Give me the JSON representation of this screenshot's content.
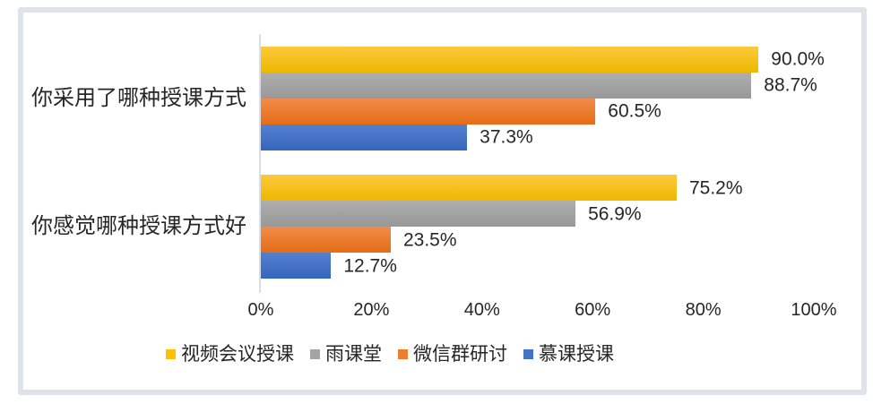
{
  "chart_data": {
    "type": "bar",
    "orientation": "horizontal",
    "title": "",
    "categories": [
      "你采用了哪种授课方式",
      "你感觉哪种授课方式好"
    ],
    "series": [
      {
        "name": "视频会议授课",
        "color": "#FFC000",
        "gradient": [
          "#FDC93B",
          "#EEB800"
        ],
        "values": [
          90.0,
          75.2
        ]
      },
      {
        "name": "雨课堂",
        "color": "#A5A5A5",
        "gradient": [
          "#AEAEAE",
          "#989898"
        ],
        "values": [
          88.7,
          56.9
        ]
      },
      {
        "name": "微信群研讨",
        "color": "#ED7D31",
        "gradient": [
          "#F18C4B",
          "#E56D15"
        ],
        "values": [
          60.5,
          23.5
        ]
      },
      {
        "name": "慕课授课",
        "color": "#4472C4",
        "gradient": [
          "#5480CE",
          "#3565BE"
        ],
        "values": [
          37.3,
          12.7
        ]
      }
    ],
    "data_labels": [
      [
        "90.0%",
        "88.7%",
        "60.5%",
        "37.3%"
      ],
      [
        "75.2%",
        "56.9%",
        "23.5%",
        "12.7%"
      ]
    ],
    "x_ticks": [
      "0%",
      "20%",
      "40%",
      "60%",
      "80%",
      "100%"
    ],
    "xlim": [
      0,
      100
    ],
    "xlabel": "",
    "ylabel": "",
    "grid": false,
    "legend_position": "bottom",
    "colors": {
      "axis_line": "#d8dde8",
      "frame_border": "#dee3ea",
      "text": "#262626",
      "background": "#ffffff"
    }
  }
}
